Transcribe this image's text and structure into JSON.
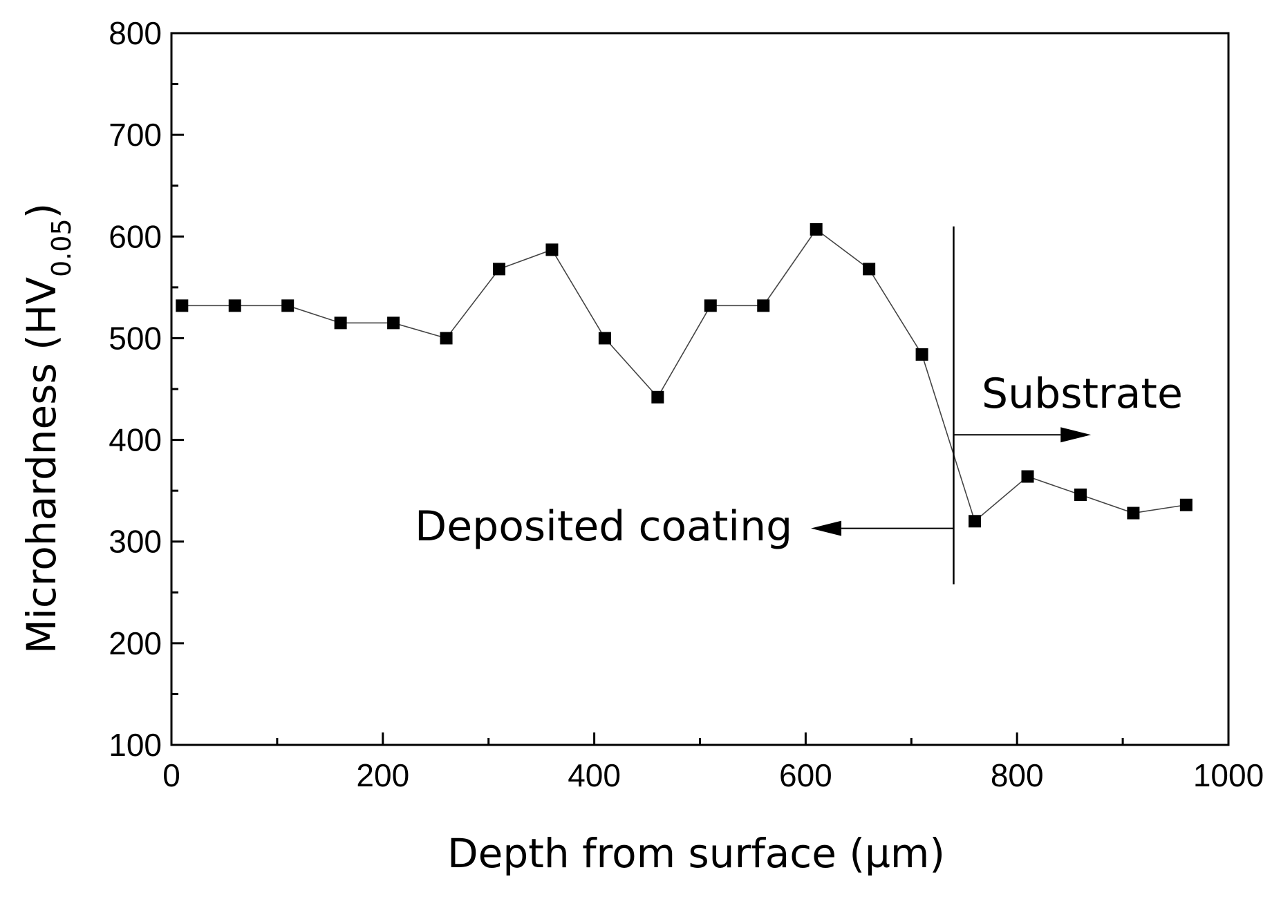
{
  "chart_data": {
    "type": "line",
    "title": "",
    "xlabel": "Depth from surface (µm)",
    "ylabel_main": "Microhardness (HV",
    "ylabel_sub": "0.05",
    "ylabel_close": ")",
    "xlim": [
      0,
      1000
    ],
    "ylim": [
      100,
      800
    ],
    "xticks": [
      0,
      200,
      400,
      600,
      800,
      1000
    ],
    "yticks": [
      100,
      200,
      300,
      400,
      500,
      600,
      700,
      800
    ],
    "grid": false,
    "series": [
      {
        "name": "microhardness",
        "marker": "square",
        "x": [
          10,
          60,
          110,
          160,
          210,
          260,
          310,
          360,
          410,
          460,
          510,
          560,
          610,
          660,
          710,
          760,
          810,
          860,
          910,
          960
        ],
        "y": [
          532,
          532,
          532,
          515,
          515,
          500,
          568,
          587,
          500,
          442,
          532,
          532,
          607,
          568,
          484,
          320,
          364,
          346,
          328,
          336
        ]
      }
    ],
    "boundary": {
      "x": 740,
      "y_from": 258,
      "y_to": 610
    },
    "annotations": {
      "substrate": {
        "text": "Substrate",
        "arrow_y": 405,
        "arrow_to_x": 870,
        "direction": "right"
      },
      "coating": {
        "text": "Deposited coating",
        "arrow_y": 313,
        "arrow_to_x": 605,
        "direction": "left"
      }
    }
  }
}
